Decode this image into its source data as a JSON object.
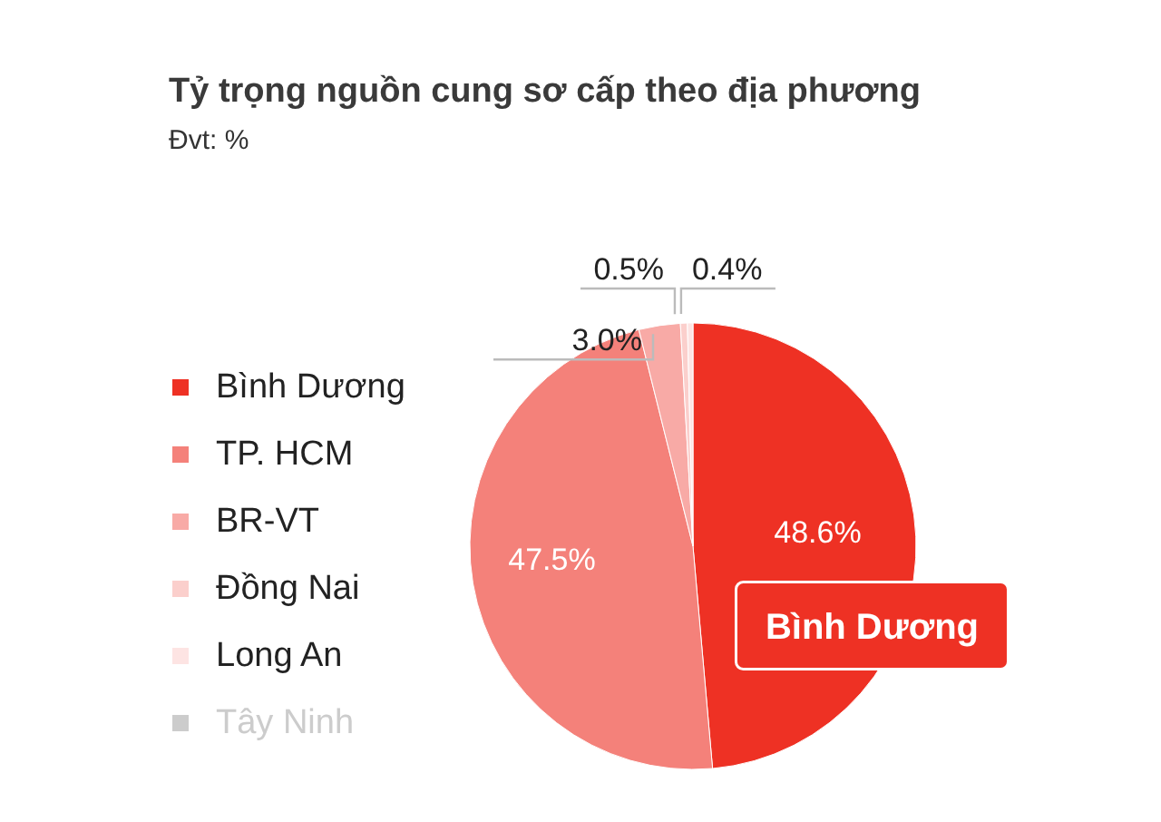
{
  "chart_data": {
    "type": "pie",
    "title": "Tỷ trọng nguồn cung sơ cấp theo địa phương",
    "subtitle": "Đvt: %",
    "categories": [
      "Bình Dương",
      "TP. HCM",
      "BR-VT",
      "Đồng Nai",
      "Long An",
      "Tây Ninh"
    ],
    "values": [
      48.6,
      47.5,
      3.0,
      0.5,
      0.4,
      0
    ],
    "colors": [
      "#ee3124",
      "#f4817a",
      "#f8aaa6",
      "#fbcfcc",
      "#fde4e3",
      "#cccccc"
    ],
    "value_labels": [
      "48.6%",
      "47.5%",
      "3.0%",
      "0.5%",
      "0.4%",
      null
    ],
    "legend": "left",
    "annotations": [
      {
        "text": "Bình Dương",
        "x": "Bình Dương"
      }
    ]
  }
}
